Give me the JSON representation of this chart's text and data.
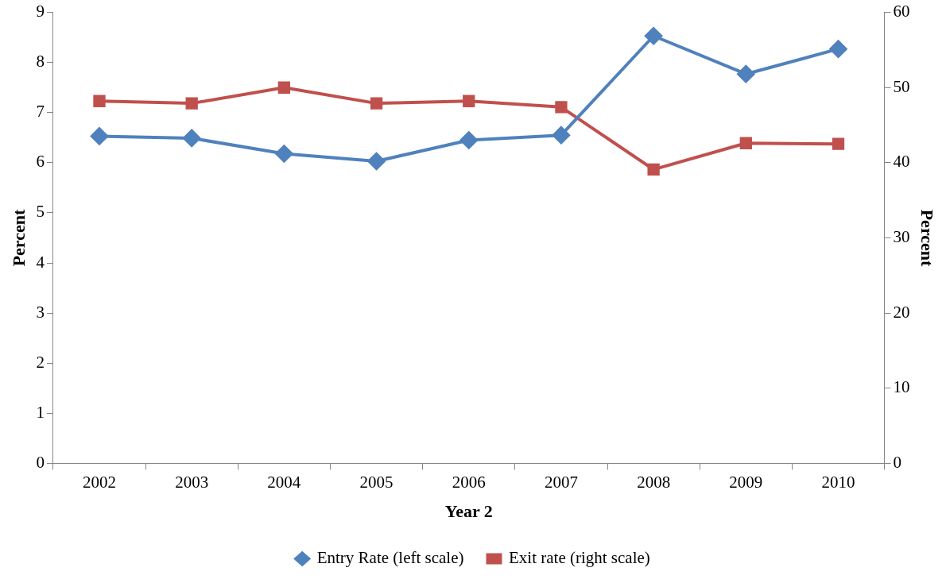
{
  "chart_data": {
    "type": "line",
    "xlabel": "Year 2",
    "ylabel": "Percent",
    "y2label": "Percent",
    "categories": [
      "2002",
      "2003",
      "2004",
      "2005",
      "2006",
      "2007",
      "2008",
      "2009",
      "2010"
    ],
    "series": [
      {
        "name": "Entry Rate (left scale)",
        "color": "#4f81bd",
        "marker": "diamond",
        "values": [
          6.53,
          6.49,
          6.18,
          6.03,
          6.45,
          6.55,
          8.53,
          7.77,
          8.27
        ]
      },
      {
        "name": "Exit rate (right scale)",
        "color": "#c0504d",
        "marker": "square",
        "axis": "y2",
        "values": [
          48.2,
          47.9,
          50.0,
          47.9,
          48.2,
          47.4,
          39.1,
          42.6,
          42.5
        ]
      }
    ],
    "ylim": [
      0,
      9
    ],
    "yticks": [
      0,
      1,
      2,
      3,
      4,
      5,
      6,
      7,
      8,
      9
    ],
    "y2lim": [
      0,
      60
    ],
    "y2ticks": [
      0,
      10,
      20,
      30,
      40,
      50,
      60
    ],
    "grid": false,
    "legend": "bottom",
    "line_style": "solid"
  }
}
